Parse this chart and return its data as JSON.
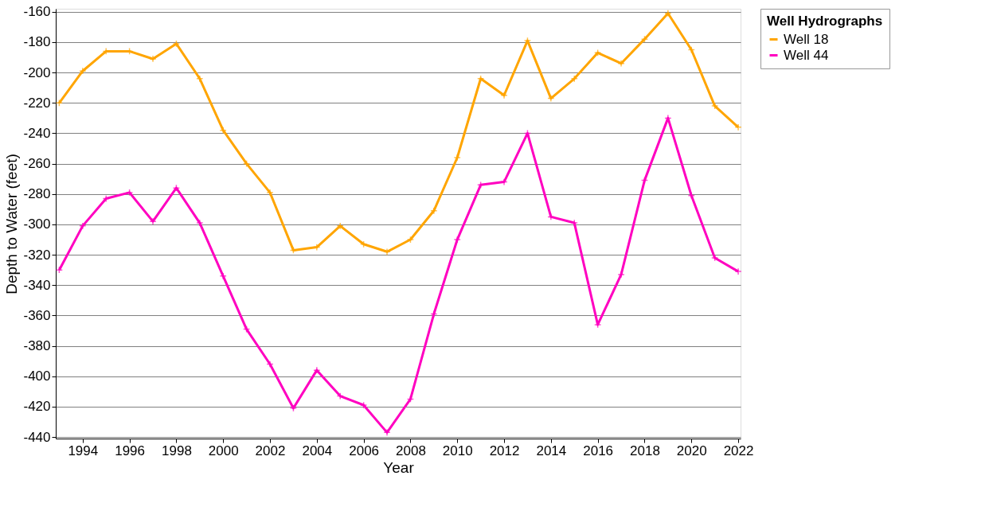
{
  "chart_data": {
    "type": "line",
    "xlabel": "Year",
    "ylabel": "Depth to Water (feet)",
    "legend_title": "Well Hydrographs",
    "x": [
      1993,
      1994,
      1995,
      1996,
      1997,
      1998,
      1999,
      2000,
      2001,
      2002,
      2003,
      2004,
      2005,
      2006,
      2007,
      2008,
      2009,
      2010,
      2011,
      2012,
      2013,
      2014,
      2015,
      2016,
      2017,
      2018,
      2019,
      2020,
      2021,
      2022
    ],
    "series": [
      {
        "name": "Well 18",
        "color": "#ffa500",
        "values": [
          -220,
          -199,
          -186,
          -186,
          -191,
          -181,
          -204,
          -238,
          -260,
          -279,
          -317,
          -315,
          -301,
          -313,
          -318,
          -310,
          -291,
          -256,
          -204,
          -215,
          -179,
          -217,
          -204,
          -187,
          -194,
          -178,
          -161,
          -185,
          -222,
          -236
        ]
      },
      {
        "name": "Well 44",
        "color": "#ff00c0",
        "values": [
          -330,
          -301,
          -283,
          -279,
          -298,
          -276,
          -299,
          -334,
          -369,
          -392,
          -421,
          -396,
          -413,
          -419,
          -437,
          -415,
          -359,
          -310,
          -274,
          -272,
          -240,
          -295,
          -299,
          -366,
          -333,
          -271,
          -230,
          -281,
          -322,
          -331
        ]
      }
    ],
    "xlim": [
      1992.85,
      2022.1
    ],
    "xticks": [
      1994,
      1996,
      1998,
      2000,
      2002,
      2004,
      2006,
      2008,
      2010,
      2012,
      2014,
      2016,
      2018,
      2020,
      2022
    ],
    "ylim": [
      -441,
      -158
    ],
    "yticks": [
      -160,
      -180,
      -200,
      -220,
      -240,
      -260,
      -280,
      -300,
      -320,
      -340,
      -360,
      -380,
      -400,
      -420,
      -440
    ],
    "grid": "y",
    "legend": "top right",
    "marker": "cross",
    "line_style": "solid"
  }
}
